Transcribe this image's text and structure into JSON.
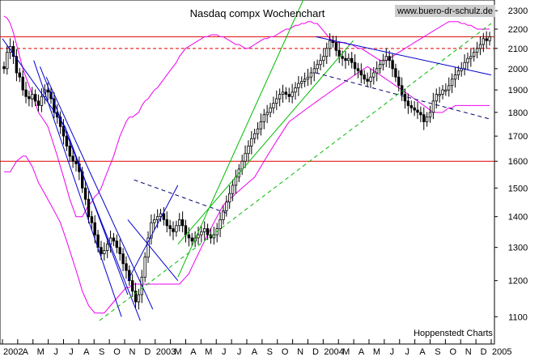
{
  "chart_data": {
    "type": "candlestick",
    "title": "Nasdaq compx Wochenchart",
    "watermark": "www.buero-dr-schulz.de",
    "source": "Hoppenstedt Charts",
    "xlabel": "",
    "ylabel": "",
    "ylim": [
      1030,
      2360
    ],
    "y_scale": "log",
    "grid": "off",
    "y_tick_labels": [
      "1100",
      "1200",
      "1300",
      "1400",
      "1500",
      "1600",
      "1700",
      "1800",
      "1900",
      "2000",
      "2100",
      "2200",
      "2300"
    ],
    "x_tick_labels": [
      "2002",
      "A",
      "M",
      "J",
      "J",
      "A",
      "S",
      "O",
      "N",
      "D",
      "2003",
      "M",
      "A",
      "M",
      "J",
      "J",
      "A",
      "S",
      "O",
      "N",
      "D",
      "2004",
      "M",
      "A",
      "M",
      "J",
      "J",
      "A",
      "S",
      "O",
      "N",
      "D",
      "2005"
    ],
    "weeks": 156,
    "close_values": [
      2000,
      2080,
      2110,
      2060,
      1980,
      1960,
      1900,
      1870,
      1860,
      1880,
      1850,
      1830,
      1870,
      1900,
      1890,
      1860,
      1800,
      1780,
      1740,
      1700,
      1660,
      1620,
      1600,
      1590,
      1560,
      1500,
      1460,
      1400,
      1380,
      1340,
      1300,
      1280,
      1290,
      1310,
      1330,
      1320,
      1300,
      1280,
      1250,
      1230,
      1200,
      1170,
      1140,
      1160,
      1210,
      1270,
      1330,
      1380,
      1390,
      1400,
      1410,
      1390,
      1370,
      1360,
      1350,
      1370,
      1390,
      1370,
      1340,
      1330,
      1320,
      1330,
      1340,
      1350,
      1360,
      1340,
      1330,
      1340,
      1360,
      1390,
      1420,
      1450,
      1480,
      1510,
      1540,
      1570,
      1600,
      1630,
      1660,
      1690,
      1710,
      1730,
      1760,
      1790,
      1800,
      1820,
      1840,
      1860,
      1880,
      1890,
      1880,
      1870,
      1890,
      1910,
      1930,
      1940,
      1950,
      1960,
      1980,
      2000,
      2020,
      2040,
      2060,
      2100,
      2140,
      2130,
      2090,
      2060,
      2050,
      2040,
      2050,
      2030,
      2000,
      1990,
      1970,
      1950,
      1940,
      1960,
      1980,
      2000,
      2020,
      2040,
      2060,
      2040,
      2000,
      1960,
      1920,
      1880,
      1850,
      1830,
      1820,
      1810,
      1800,
      1790,
      1760,
      1780,
      1800,
      1850,
      1880,
      1880,
      1900,
      1900,
      1920,
      1950,
      1970,
      1990,
      2000,
      2030,
      2050,
      2060,
      2080,
      2100,
      2120,
      2150,
      2140,
      2160
    ],
    "hlines": [
      {
        "value": 1600,
        "style": "solid",
        "color": "#dd0000"
      },
      {
        "value": 2100,
        "style": "dashed",
        "color": "#dd0000"
      },
      {
        "value": 2160,
        "style": "solid",
        "color": "#dd0000"
      }
    ],
    "bollinger_upper": [
      2270,
      2260,
      2230,
      2180,
      2120,
      2060,
      2000,
      1960,
      1920,
      1880,
      1840,
      1800,
      1780,
      1760,
      1740,
      1700,
      1660,
      1620,
      1580,
      1540,
      1500,
      1460,
      1430,
      1400,
      1400,
      1400,
      1420,
      1440,
      1450,
      1470,
      1480,
      1500,
      1530,
      1560,
      1590,
      1620,
      1660,
      1700,
      1730,
      1760,
      1780,
      1780,
      1790,
      1800,
      1830,
      1850,
      1860,
      1880,
      1900,
      1910,
      1930,
      1950,
      1970,
      1990,
      2010,
      2030,
      2060,
      2080,
      2100,
      2110,
      2120,
      2130,
      2140,
      2150,
      2160,
      2160,
      2170,
      2170,
      2170,
      2160,
      2160,
      2150,
      2140,
      2130,
      2120,
      2120,
      2110,
      2100,
      2100,
      2110,
      2120,
      2130,
      2140,
      2150,
      2150,
      2160,
      2160,
      2170,
      2180,
      2190,
      2200,
      2200,
      2210,
      2220,
      2220,
      2230,
      2230,
      2240,
      2240,
      2230,
      2230,
      2210,
      2190,
      2170,
      2150,
      2140,
      2130,
      2130,
      2130,
      2130,
      2120,
      2120,
      2110,
      2100,
      2100,
      2090,
      2080,
      2070,
      2060,
      2050,
      2040,
      2040,
      2040,
      2050,
      2060,
      2070,
      2080,
      2090,
      2100,
      2110,
      2120,
      2130,
      2140,
      2150,
      2160,
      2170,
      2180,
      2190,
      2200,
      2210,
      2220,
      2230,
      2240,
      2240,
      2240,
      2240,
      2230,
      2230,
      2220,
      2220,
      2210,
      2200,
      2200,
      2200,
      2200,
      2200
    ],
    "bollinger_lower": [
      1560,
      1560,
      1560,
      1580,
      1600,
      1610,
      1620,
      1620,
      1600,
      1580,
      1550,
      1520,
      1500,
      1480,
      1460,
      1440,
      1420,
      1400,
      1380,
      1350,
      1320,
      1290,
      1260,
      1230,
      1200,
      1170,
      1150,
      1130,
      1120,
      1110,
      1110,
      1110,
      1110,
      1120,
      1130,
      1140,
      1150,
      1160,
      1170,
      1180,
      1180,
      1190,
      1190,
      1190,
      1190,
      1190,
      1190,
      1190,
      1190,
      1190,
      1190,
      1190,
      1190,
      1190,
      1190,
      1190,
      1190,
      1200,
      1210,
      1220,
      1240,
      1260,
      1280,
      1300,
      1320,
      1340,
      1360,
      1380,
      1400,
      1420,
      1440,
      1450,
      1460,
      1470,
      1480,
      1490,
      1500,
      1510,
      1520,
      1530,
      1540,
      1560,
      1580,
      1600,
      1620,
      1640,
      1660,
      1680,
      1700,
      1720,
      1740,
      1760,
      1770,
      1780,
      1790,
      1800,
      1810,
      1820,
      1830,
      1840,
      1850,
      1860,
      1870,
      1880,
      1890,
      1900,
      1910,
      1920,
      1930,
      1940,
      1950,
      1960,
      1970,
      1980,
      1990,
      2000,
      2010,
      2000,
      1990,
      1980,
      1970,
      1960,
      1950,
      1940,
      1930,
      1920,
      1910,
      1900,
      1890,
      1880,
      1870,
      1860,
      1850,
      1840,
      1830,
      1820,
      1810,
      1800,
      1800,
      1800,
      1800,
      1810,
      1820,
      1820,
      1830,
      1830,
      1830,
      1830,
      1830,
      1830,
      1830,
      1830,
      1830,
      1830,
      1830,
      1830
    ],
    "trendlines": [
      {
        "color": "#0000cc",
        "style": "solid",
        "points": [
          [
            0,
            2150
          ],
          [
            20,
            1740
          ],
          [
            40,
            1160
          ]
        ]
      },
      {
        "color": "#0000cc",
        "style": "solid",
        "points": [
          [
            10,
            2040
          ],
          [
            38,
            1100
          ]
        ]
      },
      {
        "color": "#0000cc",
        "style": "solid",
        "points": [
          [
            12,
            2010
          ],
          [
            44,
            1090
          ]
        ]
      },
      {
        "color": "#0000cc",
        "style": "solid",
        "points": [
          [
            14,
            1960
          ],
          [
            48,
            1120
          ]
        ]
      },
      {
        "color": "#0000cc",
        "style": "solid",
        "points": [
          [
            40,
            1390
          ],
          [
            56,
            1200
          ]
        ]
      },
      {
        "color": "#0000cc",
        "style": "solid",
        "points": [
          [
            40,
            1200
          ],
          [
            56,
            1510
          ]
        ]
      },
      {
        "color": "#000066",
        "style": "dashed",
        "points": [
          [
            42,
            1530
          ],
          [
            72,
            1410
          ]
        ]
      },
      {
        "color": "#00bb00",
        "style": "solid",
        "points": [
          [
            56,
            1210
          ],
          [
            97,
            2400
          ]
        ]
      },
      {
        "color": "#00bb00",
        "style": "solid",
        "points": [
          [
            56,
            1310
          ],
          [
            112,
            2140
          ]
        ]
      },
      {
        "color": "#00bb00",
        "style": "dashed",
        "points": [
          [
            31,
            1090
          ],
          [
            156,
            2230
          ]
        ]
      },
      {
        "color": "#0000cc",
        "style": "solid",
        "points": [
          [
            100,
            2160
          ],
          [
            156,
            1970
          ]
        ]
      },
      {
        "color": "#000066",
        "style": "dashed",
        "points": [
          [
            100,
            1980
          ],
          [
            156,
            1770
          ]
        ]
      }
    ]
  }
}
